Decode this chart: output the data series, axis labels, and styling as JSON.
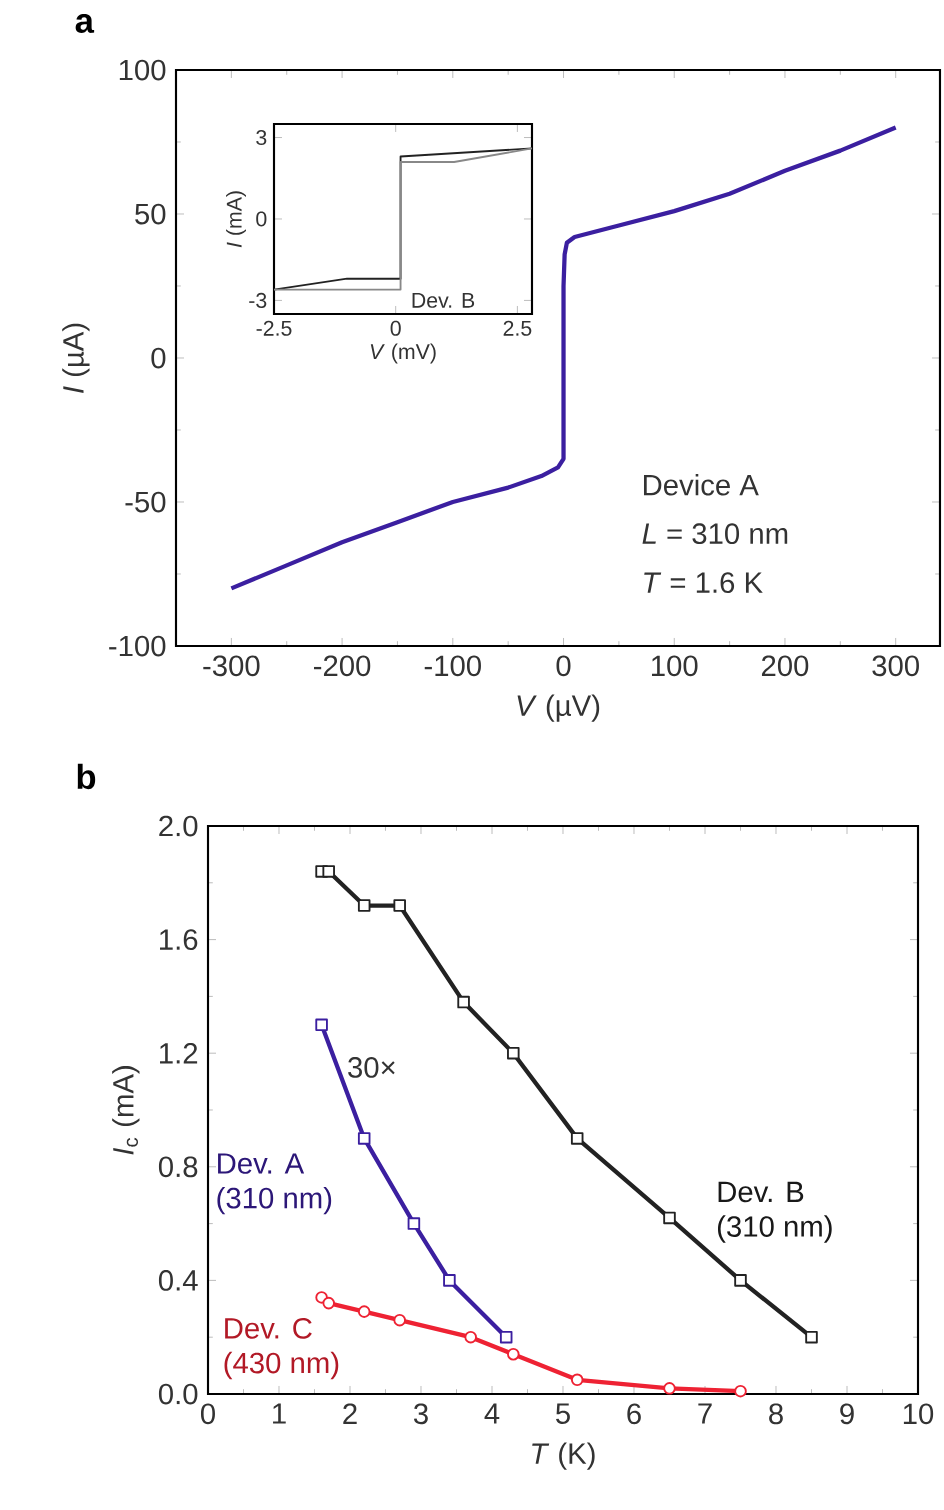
{
  "chart_data": [
    {
      "type": "line",
      "title": "a",
      "xlabel": "*V* (µV)",
      "ylabel": "*I* (µA)",
      "xlim": [
        -350,
        340
      ],
      "ylim": [
        -100,
        100
      ],
      "xticks": [
        -300,
        -200,
        -100,
        0,
        100,
        200,
        300
      ],
      "yticks": [
        -100,
        -50,
        0,
        50,
        100
      ],
      "annotations": [
        "Device A",
        "*L* = 310 nm",
        "*T* = 1.6 K"
      ],
      "series": [
        {
          "color": "#3b1fa0",
          "x": [
            -300,
            -250,
            -200,
            -150,
            -100,
            -50,
            -20,
            -5,
            0,
            0,
            1,
            3,
            10,
            30,
            50,
            100,
            150,
            200,
            250,
            300
          ],
          "values": [
            -80,
            -72,
            -64,
            -57,
            -50,
            -45,
            -41,
            -38,
            -35,
            25,
            36,
            40,
            42,
            44,
            46,
            51,
            57,
            65,
            72,
            80
          ]
        }
      ]
    },
    {
      "type": "line",
      "xlabel": "*V* (mV)",
      "ylabel": "*I* (mA)",
      "xlim": [
        -2.5,
        2.8
      ],
      "ylim": [
        -3.5,
        3.5
      ],
      "xticks": [
        -2.5,
        0,
        2.5
      ],
      "yticks": [
        -3,
        0,
        3
      ],
      "annotations": [
        "Dev. B"
      ],
      "series": [
        {
          "color": "#222222",
          "x": [
            -2.5,
            -1,
            0.1,
            0.1,
            2.8
          ],
          "values": [
            -2.6,
            -2.2,
            -2.2,
            2.3,
            2.6
          ]
        },
        {
          "color": "#888888",
          "x": [
            -2.5,
            0.1,
            0.1,
            1.2,
            2.8
          ],
          "values": [
            -2.6,
            -2.6,
            2.1,
            2.1,
            2.6
          ]
        }
      ]
    },
    {
      "type": "line",
      "title": "b",
      "xlabel": "*T* (K)",
      "ylabel": "*I*$_{c}$ (mA)",
      "xlim": [
        0,
        10
      ],
      "ylim": [
        0,
        2
      ],
      "xticks": [
        0,
        1,
        2,
        3,
        4,
        5,
        6,
        7,
        8,
        9,
        10
      ],
      "yticks": [
        {
          "value": 0,
          "label": "0.0"
        },
        {
          "value": 0.4,
          "label": "0.4"
        },
        {
          "value": 0.8,
          "label": "0.8"
        },
        {
          "value": 1.2,
          "label": "1.2"
        },
        {
          "value": 1.6,
          "label": "1.6"
        },
        {
          "value": 2,
          "label": "2.0"
        }
      ],
      "annotations": [
        "30×"
      ],
      "series": [
        {
          "name": "Dev. A (310 nm)",
          "color": "#3b1fa0",
          "marker": "square",
          "x": [
            1.6,
            2.2,
            2.9,
            3.4,
            4.2
          ],
          "values": [
            1.3,
            0.9,
            0.6,
            0.4,
            0.2
          ]
        },
        {
          "name": "Dev. B (310 nm)",
          "color": "#222222",
          "marker": "square",
          "x": [
            1.6,
            1.7,
            2.2,
            2.7,
            3.6,
            4.3,
            5.2,
            6.5,
            7.5,
            8.5
          ],
          "values": [
            1.84,
            1.84,
            1.72,
            1.72,
            1.38,
            1.2,
            0.9,
            0.62,
            0.4,
            0.2
          ]
        },
        {
          "name": "Dev. C (430 nm)",
          "color": "#ee2233",
          "marker": "circle",
          "x": [
            1.6,
            1.7,
            2.2,
            2.7,
            3.7,
            4.3,
            5.2,
            6.5,
            7.5
          ],
          "values": [
            0.34,
            0.32,
            0.29,
            0.26,
            0.2,
            0.14,
            0.05,
            0.02,
            0.01
          ]
        }
      ]
    }
  ]
}
